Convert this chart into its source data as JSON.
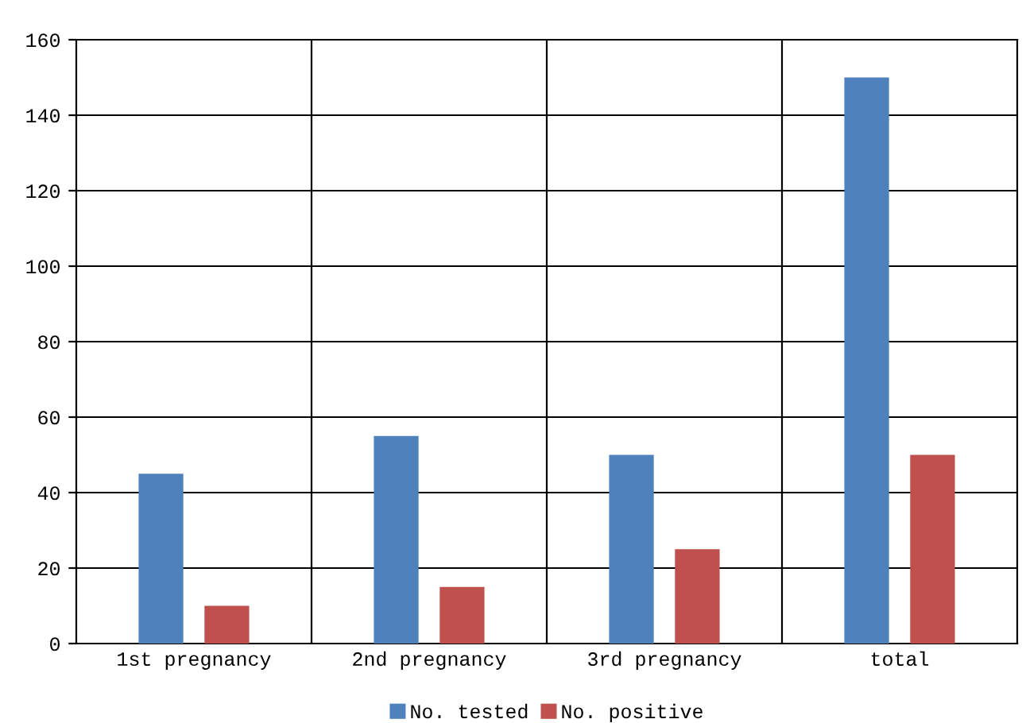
{
  "chart_data": {
    "type": "bar",
    "categories": [
      "1st pregnancy",
      "2nd pregnancy",
      "3rd pregnancy",
      "total"
    ],
    "series": [
      {
        "name": "No. tested",
        "color": "#4f81bd",
        "values": [
          45,
          55,
          50,
          150
        ]
      },
      {
        "name": "No. positive",
        "color": "#c0504d",
        "values": [
          10,
          15,
          25,
          50
        ]
      }
    ],
    "ylim": [
      0,
      160
    ],
    "yticks": [
      0,
      20,
      40,
      60,
      80,
      100,
      120,
      140,
      160
    ],
    "grid": true,
    "legend": "bottom"
  }
}
